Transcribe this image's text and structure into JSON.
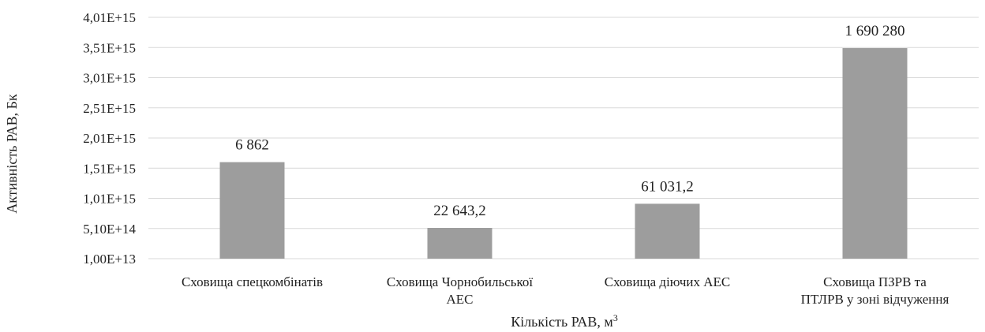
{
  "chart_data": {
    "type": "bar",
    "title": "",
    "categories": [
      [
        "Сховища спецкомбінатів"
      ],
      [
        "Сховища Чорнобильської",
        "АЕС"
      ],
      [
        "Сховища діючих АЕС"
      ],
      [
        "Сховища ПЗРВ та",
        "ПТЛРВ у зоні відчуження"
      ]
    ],
    "values": [
      1610000000000000.0,
      520000000000000.0,
      920000000000000.0,
      3500000000000000.0
    ],
    "data_labels": [
      "6 862",
      "22 643,2",
      "61 031,2",
      "1 690 280"
    ],
    "xlabel": "Кількість РАВ, м",
    "xlabel_superscript": "3",
    "ylabel": "Активність РАВ, Бк",
    "yticks": [
      10000000000000.0,
      510000000000000.0,
      1010000000000000.0,
      1510000000000000.0,
      2010000000000000.0,
      2510000000000000.0,
      3010000000000000.0,
      3510000000000000.0,
      4010000000000000.0
    ],
    "ytick_labels": [
      "1,00E+13",
      "5,10E+14",
      "1,01E+15",
      "1,51E+15",
      "2,01E+15",
      "2,51E+15",
      "3,01E+15",
      "3,51E+15",
      "4,01E+15"
    ],
    "ylim": [
      10000000000000.0,
      4010000000000000.0
    ],
    "grid": true,
    "colors": {
      "bar": "#9d9d9d",
      "grid": "#d9d9d9",
      "text": "#222222"
    }
  }
}
